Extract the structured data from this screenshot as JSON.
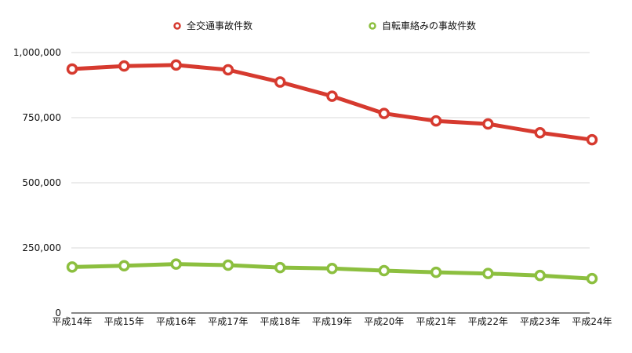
{
  "chart_data": {
    "type": "line",
    "categories": [
      "平成14年",
      "平成15年",
      "平成16年",
      "平成17年",
      "平成18年",
      "平成19年",
      "平成20年",
      "平成21年",
      "平成22年",
      "平成23年",
      "平成24年"
    ],
    "series": [
      {
        "name": "全交通事故件数",
        "color": "#d63a2f",
        "values": [
          936721,
          948281,
          952191,
          933828,
          886864,
          832454,
          766147,
          737474,
          725773,
          692084,
          665138
        ]
      },
      {
        "name": "自転車絡みの事故件数",
        "color": "#8cbf3f",
        "values": [
          176652,
          181537,
          187977,
          183653,
          174262,
          171018,
          162525,
          156373,
          151626,
          144018,
          132048
        ]
      }
    ],
    "ylim": [
      0,
      1000000
    ],
    "yticks": [
      "0",
      "250,000",
      "500,000",
      "750,000",
      "1,000,000"
    ],
    "ytick_values": [
      0,
      250000,
      500000,
      750000,
      1000000
    ],
    "grid": true,
    "legend_position": "top-center"
  }
}
